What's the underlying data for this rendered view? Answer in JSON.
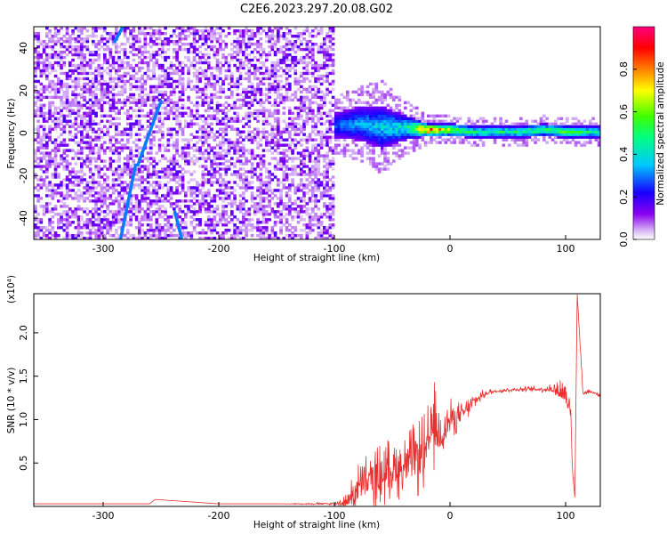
{
  "title": "C2E6.2023.297.20.08.G02",
  "chart_data": [
    {
      "type": "heatmap",
      "xlabel": "Height of straight line (km)",
      "ylabel": "Frequency (Hz)",
      "xlim": [
        -360,
        130
      ],
      "ylim": [
        -50,
        50
      ],
      "x_ticks": [
        -300,
        -200,
        -100,
        0,
        100
      ],
      "y_ticks": [
        -40,
        -20,
        0,
        20,
        40
      ],
      "colorbar": {
        "label": "Normalized spectral amplitude",
        "range": [
          0.0,
          1.0
        ],
        "ticks": [
          "0.0",
          "0.2",
          "0.4",
          "0.6",
          "0.8"
        ],
        "colormap": "rainbow (white-purple-blue-cyan-green-yellow-red-magenta)"
      },
      "noise_region": {
        "x_range": [
          -360,
          -100
        ],
        "amplitude": 0.1
      },
      "streaks": [
        {
          "x_start": -285,
          "y_start": -50,
          "x_end": -272,
          "y_end": -15,
          "amplitude": 0.3
        },
        {
          "x_start": -270,
          "y_start": -15,
          "x_end": -250,
          "y_end": 15,
          "amplitude": 0.3
        },
        {
          "x_start": -238,
          "y_start": -37,
          "x_end": -232,
          "y_end": -50,
          "amplitude": 0.3
        },
        {
          "x_start": -290,
          "y_start": 43,
          "x_end": -283,
          "y_end": 50,
          "amplitude": 0.3
        }
      ],
      "signal_band": {
        "x": [
          -100,
          -80,
          -60,
          -40,
          -20,
          0,
          20,
          40,
          60,
          80,
          100,
          130
        ],
        "center_hz": [
          3,
          4,
          2,
          2,
          1,
          1,
          0,
          0,
          0,
          1,
          0,
          0
        ],
        "half_width_hz": [
          6,
          8,
          10,
          6,
          3,
          3,
          3,
          3,
          3,
          3,
          3,
          3
        ],
        "amplitude": [
          0.3,
          0.35,
          0.4,
          0.45,
          0.95,
          0.7,
          0.5,
          0.5,
          0.5,
          0.55,
          0.6,
          0.45
        ]
      }
    },
    {
      "type": "line",
      "xlabel": "Height of straight line (km)",
      "ylabel": "SNR (10 * v/v)",
      "y_multiplier": "(x10⁴)",
      "xlim": [
        -360,
        130
      ],
      "ylim": [
        0,
        2.45
      ],
      "x_ticks": [
        -300,
        -200,
        -100,
        0,
        100
      ],
      "y_ticks": [
        0.5,
        1.0,
        1.5,
        2.0
      ],
      "color": "#e83030",
      "series": [
        {
          "x": [
            -360,
            -300,
            -260,
            -255,
            -200,
            -150,
            -100,
            -90,
            -80,
            -70,
            -60,
            -50,
            -40,
            -30,
            -20,
            -15,
            -10,
            -5,
            0,
            10,
            20,
            30,
            40,
            60,
            80,
            90,
            100,
            104,
            106,
            108,
            110,
            115,
            120,
            130
          ],
          "y": [
            0.03,
            0.03,
            0.03,
            0.08,
            0.03,
            0.03,
            0.03,
            0.05,
            0.2,
            0.3,
            0.35,
            0.45,
            0.45,
            0.55,
            0.6,
            1.0,
            0.8,
            0.9,
            1.0,
            1.05,
            1.2,
            1.3,
            1.33,
            1.35,
            1.35,
            1.35,
            1.3,
            1.2,
            0.4,
            0.1,
            2.45,
            1.3,
            1.33,
            1.28
          ],
          "noise": [
            0,
            0,
            0,
            0,
            0,
            0,
            0.02,
            0.1,
            0.3,
            0.35,
            0.4,
            0.35,
            0.4,
            0.45,
            0.5,
            0.6,
            0.4,
            0.3,
            0.25,
            0.15,
            0.1,
            0.05,
            0.03,
            0.03,
            0.04,
            0.08,
            0.25,
            0.3,
            0,
            0,
            0,
            0.05,
            0.03,
            0.02
          ]
        }
      ]
    }
  ]
}
